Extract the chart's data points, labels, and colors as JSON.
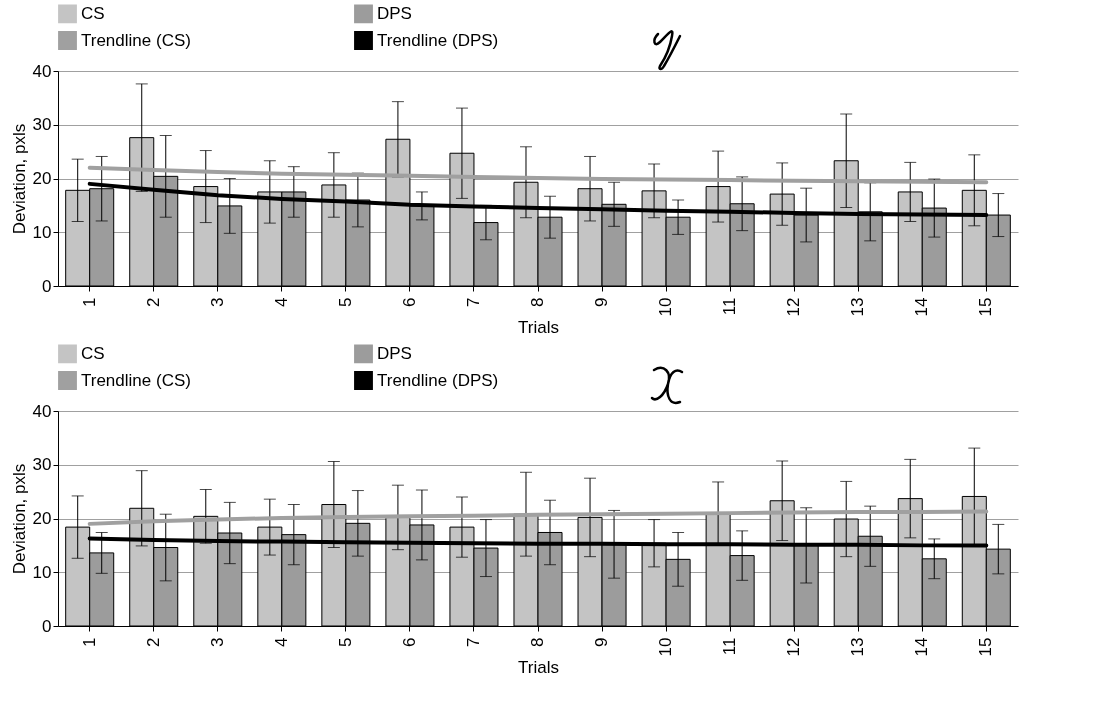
{
  "chart_data": [
    {
      "type": "bar",
      "categories": [
        "1",
        "2",
        "3",
        "4",
        "5",
        "6",
        "7",
        "8",
        "9",
        "10",
        "11",
        "12",
        "13",
        "14",
        "15"
      ],
      "xlabel": "Trials",
      "ylabel": "Deviation, pxls",
      "ylim": [
        0,
        40
      ],
      "yticks": [
        0,
        10,
        20,
        30,
        40
      ],
      "grid": "y",
      "legend": "top",
      "series": [
        {
          "name": "CS",
          "color": "#c4c4c4",
          "values": [
            17.8,
            27.6,
            18.5,
            17.5,
            18.8,
            27.3,
            24.7,
            19.3,
            18.1,
            17.7,
            18.5,
            17.1,
            23.3,
            17.5,
            17.8
          ],
          "errors": [
            5.8,
            10,
            6.7,
            5.8,
            6,
            7,
            8.4,
            6.6,
            6,
            5,
            6.6,
            5.8,
            8.7,
            5.5,
            6.6
          ]
        },
        {
          "name": "DPS",
          "color": "#9c9c9c",
          "values": [
            18.1,
            20.4,
            14.9,
            17.5,
            16,
            14.9,
            11.8,
            12.8,
            15.2,
            12.8,
            15.3,
            13.2,
            13.8,
            14.5,
            13.2
          ],
          "errors": [
            6,
            7.6,
            5.1,
            4.7,
            5,
            2.6,
            3.2,
            3.9,
            4.1,
            3.2,
            5,
            5,
            5.4,
            5.4,
            4
          ]
        },
        {
          "name": "Trendline (CS)",
          "type": "line",
          "color": "#a0a0a0",
          "values": [
            22,
            21.6,
            21.2,
            20.9,
            20.7,
            20.5,
            20.3,
            20.1,
            19.9,
            19.8,
            19.7,
            19.6,
            19.5,
            19.4,
            19.3
          ]
        },
        {
          "name": "Trendline (DPS)",
          "type": "line",
          "color": "#000000",
          "values": [
            19,
            17.9,
            16.9,
            16.2,
            15.7,
            15.1,
            14.8,
            14.5,
            14.3,
            14,
            13.8,
            13.6,
            13.4,
            13.3,
            13.2
          ]
        }
      ]
    },
    {
      "type": "bar",
      "categories": [
        "1",
        "2",
        "3",
        "4",
        "5",
        "6",
        "7",
        "8",
        "9",
        "10",
        "11",
        "12",
        "13",
        "14",
        "15"
      ],
      "xlabel": "Trials",
      "ylabel": "Deviation, pxls",
      "ylim": [
        0,
        40
      ],
      "yticks": [
        0,
        10,
        20,
        30,
        40
      ],
      "grid": "y",
      "legend": "top",
      "series": [
        {
          "name": "CS",
          "color": "#c4c4c4",
          "values": [
            18.4,
            21.9,
            20.4,
            18.4,
            22.6,
            20.2,
            18.4,
            20.8,
            20.2,
            15.4,
            21,
            23.3,
            19.9,
            23.7,
            24.1
          ],
          "errors": [
            5.8,
            7,
            5,
            5.2,
            8,
            6,
            5.6,
            7.8,
            7.3,
            4.4,
            5.8,
            7.4,
            7,
            7.3,
            9
          ]
        },
        {
          "name": "DPS",
          "color": "#9c9c9c",
          "values": [
            13.6,
            14.6,
            17.3,
            17,
            19.1,
            18.8,
            14.5,
            17.4,
            15.2,
            12.4,
            13.1,
            15,
            16.7,
            12.5,
            14.3
          ],
          "errors": [
            3.8,
            6.2,
            5.7,
            5.6,
            6.1,
            6.5,
            5.3,
            6,
            6.3,
            5,
            4.6,
            7,
            5.6,
            3.7,
            4.6
          ]
        },
        {
          "name": "Trendline (CS)",
          "type": "line",
          "color": "#a0a0a0",
          "values": [
            19,
            19.5,
            19.8,
            20.1,
            20.3,
            20.4,
            20.5,
            20.7,
            20.8,
            20.9,
            21,
            21.1,
            21.2,
            21.2,
            21.3
          ]
        },
        {
          "name": "Trendline (DPS)",
          "type": "line",
          "color": "#000000",
          "values": [
            16.3,
            16,
            15.8,
            15.7,
            15.6,
            15.5,
            15.4,
            15.3,
            15.3,
            15.2,
            15.2,
            15.1,
            15.1,
            15,
            15
          ]
        }
      ]
    }
  ]
}
